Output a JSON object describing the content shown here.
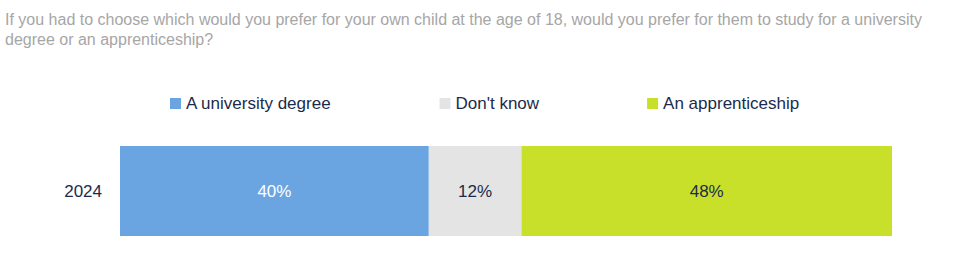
{
  "chart_data": {
    "type": "bar",
    "title": "If you had to choose which would you prefer for your own child at the age of 18, would you prefer for them to study for a university degree or an apprenticeship?",
    "orientation": "horizontal",
    "stacked": true,
    "data_labels": true,
    "tick_labels": "y",
    "legend": "top",
    "grid": false,
    "categories": [
      "2024"
    ],
    "xlim": [
      0,
      100
    ],
    "series": [
      {
        "name": "A university degree",
        "color": "#6aa5e2",
        "values": [
          40
        ],
        "value_labels": [
          "40%"
        ]
      },
      {
        "name": "Don't know",
        "color": "#e4e4e4",
        "values": [
          12
        ],
        "value_labels": [
          "12%"
        ]
      },
      {
        "name": "An apprenticeship",
        "color": "#c9e02b",
        "values": [
          48
        ],
        "value_labels": [
          "48%"
        ]
      }
    ]
  }
}
